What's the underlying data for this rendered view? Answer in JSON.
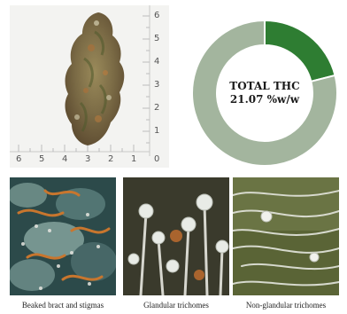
{
  "specimen": {
    "ruler_vertical_labels": [
      "6",
      "5",
      "4",
      "3",
      "2",
      "1"
    ],
    "ruler_horizontal_labels": [
      "6",
      "5",
      "4",
      "3",
      "2",
      "1",
      "0"
    ]
  },
  "chart_data": {
    "type": "pie",
    "title": "TOTAL THC",
    "value_label": "21.07 %w/w",
    "values": [
      21.07,
      78.93
    ],
    "colors": [
      "#2e7d32",
      "#a3b59e"
    ]
  },
  "images": [
    {
      "caption": "Beaked bract and stigmas"
    },
    {
      "caption": "Glandular trichomes"
    },
    {
      "caption": "Non-glandular trichomes"
    }
  ]
}
